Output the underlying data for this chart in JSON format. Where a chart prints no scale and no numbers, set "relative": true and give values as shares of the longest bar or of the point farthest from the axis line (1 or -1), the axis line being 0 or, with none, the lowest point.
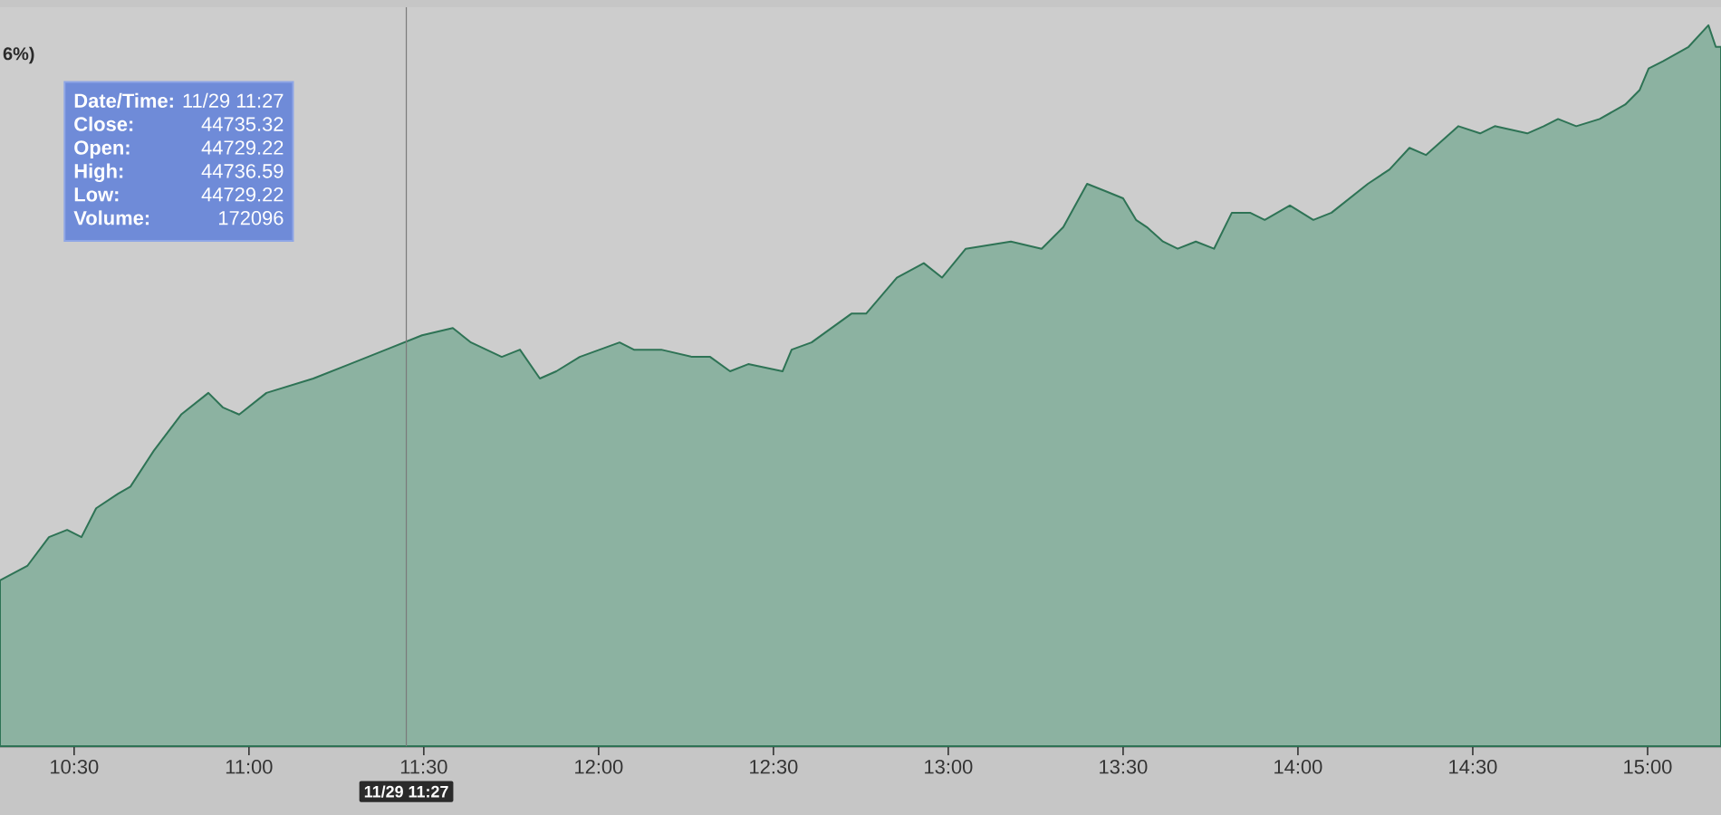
{
  "chart_data": {
    "type": "area",
    "relative": true,
    "color": "#2e7355",
    "x": [
      10.288,
      10.366,
      10.428,
      10.48,
      10.521,
      10.563,
      10.625,
      10.661,
      10.728,
      10.806,
      10.884,
      10.925,
      10.972,
      11.05,
      11.184,
      11.288,
      11.34,
      11.392,
      11.495,
      11.583,
      11.635,
      11.723,
      11.775,
      11.832,
      11.879,
      11.946,
      12.06,
      12.101,
      12.179,
      12.267,
      12.319,
      12.376,
      12.428,
      12.526,
      12.552,
      12.609,
      12.723,
      12.765,
      12.853,
      12.93,
      12.982,
      13.05,
      13.179,
      13.267,
      13.329,
      13.397,
      13.449,
      13.5,
      13.537,
      13.568,
      13.614,
      13.656,
      13.708,
      13.76,
      13.811,
      13.863,
      13.905,
      13.977,
      14.044,
      14.096,
      14.2,
      14.262,
      14.319,
      14.366,
      14.459,
      14.521,
      14.563,
      14.656,
      14.703,
      14.744,
      14.796,
      14.863,
      14.936,
      14.977,
      15.003,
      15.044,
      15.117,
      15.174,
      15.195,
      15.21
    ],
    "values": [
      0.23,
      0.25,
      0.29,
      0.3,
      0.29,
      0.33,
      0.35,
      0.36,
      0.41,
      0.46,
      0.49,
      0.47,
      0.46,
      0.49,
      0.51,
      0.53,
      0.54,
      0.55,
      0.57,
      0.58,
      0.56,
      0.54,
      0.55,
      0.51,
      0.52,
      0.54,
      0.56,
      0.55,
      0.55,
      0.54,
      0.54,
      0.52,
      0.53,
      0.52,
      0.55,
      0.56,
      0.6,
      0.6,
      0.65,
      0.67,
      0.65,
      0.69,
      0.7,
      0.69,
      0.72,
      0.78,
      0.77,
      0.76,
      0.73,
      0.72,
      0.7,
      0.69,
      0.7,
      0.69,
      0.74,
      0.74,
      0.73,
      0.75,
      0.73,
      0.74,
      0.78,
      0.8,
      0.83,
      0.82,
      0.86,
      0.85,
      0.86,
      0.85,
      0.86,
      0.87,
      0.86,
      0.87,
      0.89,
      0.91,
      0.94,
      0.95,
      0.97,
      1,
      0.97,
      0.97
    ],
    "xlim": [
      10.288,
      15.21
    ],
    "xticks": [
      {
        "value": 10.5,
        "label": "10:30"
      },
      {
        "value": 11,
        "label": "11:00"
      },
      {
        "value": 11.5,
        "label": "11:30"
      },
      {
        "value": 12,
        "label": "12:00"
      },
      {
        "value": 12.5,
        "label": "12:30"
      },
      {
        "value": 13,
        "label": "13:00"
      },
      {
        "value": 13.5,
        "label": "13:30"
      },
      {
        "value": 14,
        "label": "14:00"
      },
      {
        "value": 14.5,
        "label": "14:30"
      },
      {
        "value": 15,
        "label": "15:00"
      }
    ],
    "tick_labels": "x",
    "ref_lines": [
      {
        "axis": "x",
        "value": 11.45,
        "label": "11/29 11:27",
        "color": "#7a7a7a"
      }
    ],
    "annotations": [
      "6%)",
      "Date/Time:",
      "11/29 11:27",
      "Close:",
      "44735.32",
      "Open:",
      "44729.22",
      "High:",
      "44736.59",
      "Low:",
      "44729.22",
      "Volume:",
      "172096"
    ]
  }
}
